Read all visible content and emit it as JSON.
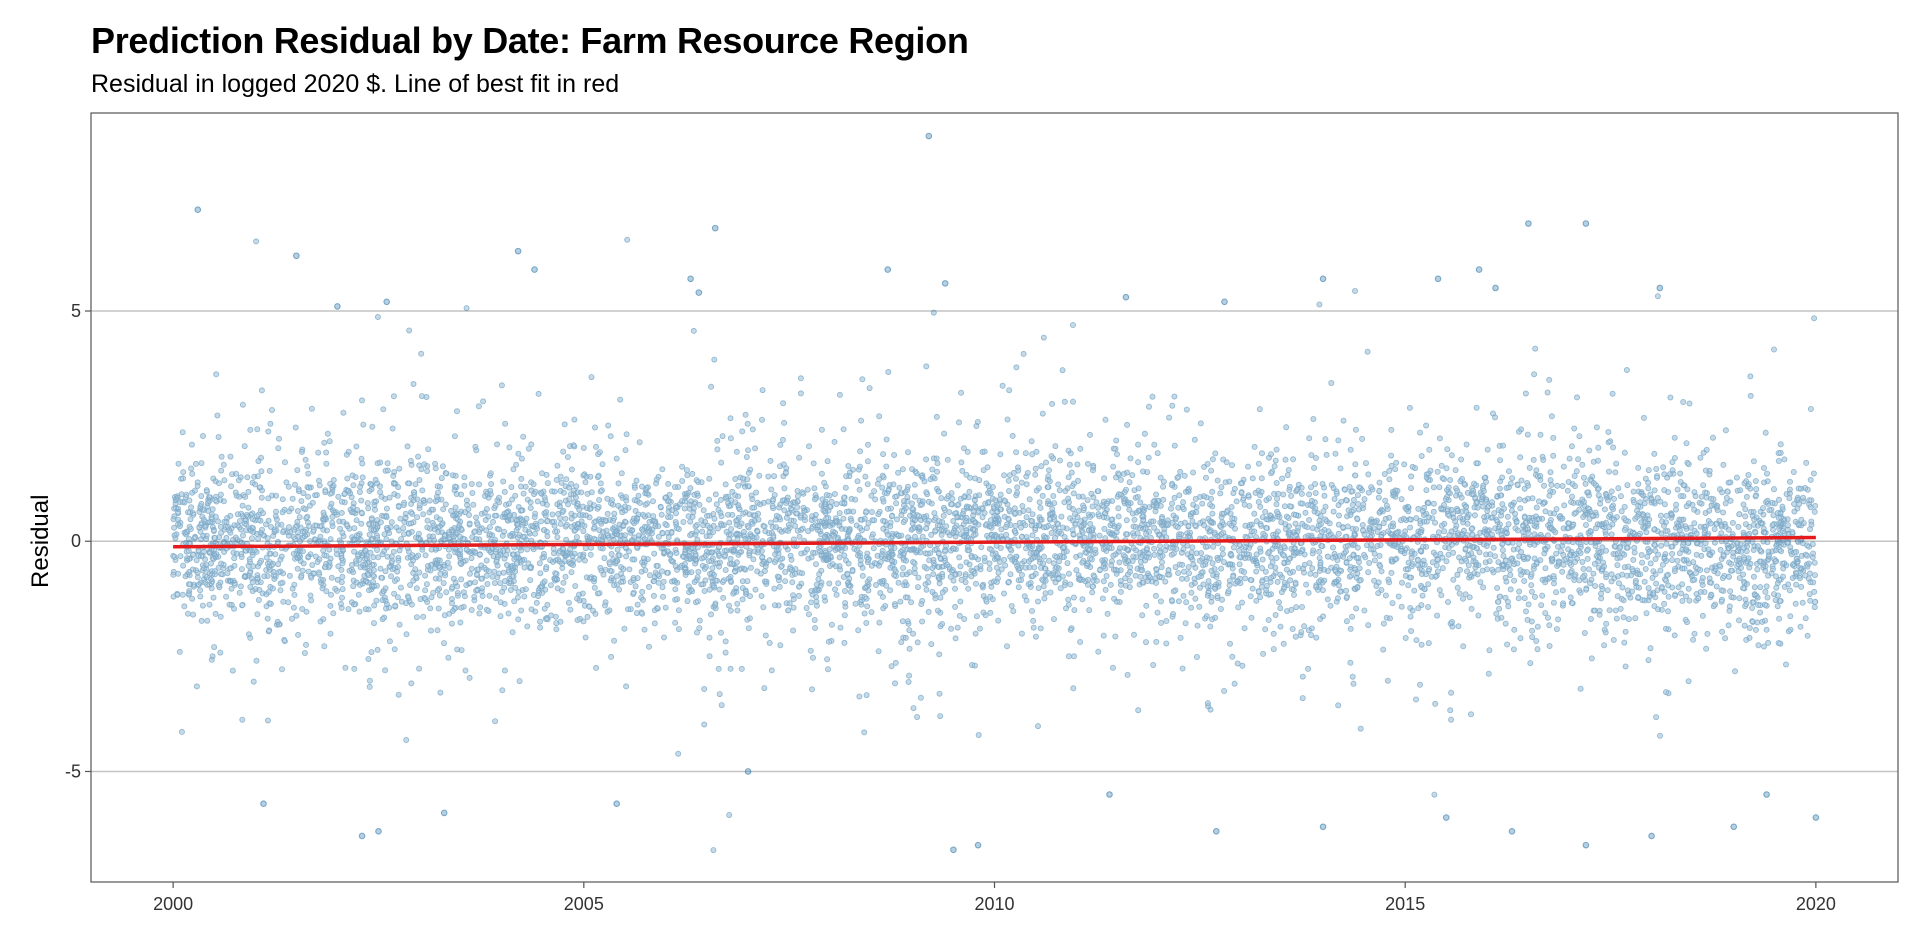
{
  "chart_data": {
    "type": "scatter",
    "title": "Prediction Residual by Date: Farm Resource Region",
    "subtitle": "Residual in logged 2020 $. Line of best fit in red",
    "xlabel": "",
    "ylabel": "Residual",
    "xlim": [
      1999.0,
      2021.0
    ],
    "ylim": [
      -7.4,
      9.3
    ],
    "x_ticks": [
      2000,
      2005,
      2010,
      2015,
      2020
    ],
    "x_tick_labels": [
      "2000",
      "2005",
      "2010",
      "2015",
      "2020"
    ],
    "y_ticks": [
      -5,
      0,
      5
    ],
    "y_tick_labels": [
      "-5",
      "0",
      "5"
    ],
    "grid": "horizontal",
    "point_color": "#2e77a8",
    "fit_color": "#e41a1c",
    "fit_line": {
      "x": [
        2000,
        2020
      ],
      "y": [
        -0.12,
        0.08
      ]
    },
    "dense_band": {
      "x_range": [
        2000,
        2020
      ],
      "core_sd": 0.8,
      "n_points": 42000
    },
    "outliers": [
      {
        "x": 2000.3,
        "y": 7.2
      },
      {
        "x": 2001.5,
        "y": 6.2
      },
      {
        "x": 2002.6,
        "y": 5.2
      },
      {
        "x": 2002.0,
        "y": 5.1
      },
      {
        "x": 2004.2,
        "y": 6.3
      },
      {
        "x": 2004.4,
        "y": 5.9
      },
      {
        "x": 2006.6,
        "y": 6.8
      },
      {
        "x": 2006.4,
        "y": 5.4
      },
      {
        "x": 2008.7,
        "y": 5.9
      },
      {
        "x": 2009.2,
        "y": 8.8
      },
      {
        "x": 2009.4,
        "y": 5.6
      },
      {
        "x": 2006.3,
        "y": 5.7
      },
      {
        "x": 2011.6,
        "y": 5.3
      },
      {
        "x": 2012.8,
        "y": 5.2
      },
      {
        "x": 2014.0,
        "y": 5.7
      },
      {
        "x": 2015.4,
        "y": 5.7
      },
      {
        "x": 2015.9,
        "y": 5.9
      },
      {
        "x": 2016.5,
        "y": 6.9
      },
      {
        "x": 2017.2,
        "y": 6.9
      },
      {
        "x": 2018.1,
        "y": 5.5
      },
      {
        "x": 2016.1,
        "y": 5.5
      },
      {
        "x": 2001.1,
        "y": -5.7
      },
      {
        "x": 2002.3,
        "y": -6.4
      },
      {
        "x": 2002.5,
        "y": -6.3
      },
      {
        "x": 2003.3,
        "y": -5.9
      },
      {
        "x": 2005.4,
        "y": -5.7
      },
      {
        "x": 2007.0,
        "y": -5.0
      },
      {
        "x": 2009.5,
        "y": -6.7
      },
      {
        "x": 2009.8,
        "y": -6.6
      },
      {
        "x": 2011.4,
        "y": -5.5
      },
      {
        "x": 2012.7,
        "y": -6.3
      },
      {
        "x": 2014.0,
        "y": -6.2
      },
      {
        "x": 2015.5,
        "y": -6.0
      },
      {
        "x": 2016.3,
        "y": -6.3
      },
      {
        "x": 2017.2,
        "y": -6.6
      },
      {
        "x": 2018.0,
        "y": -6.4
      },
      {
        "x": 2019.0,
        "y": -6.2
      },
      {
        "x": 2020.0,
        "y": -6.0
      },
      {
        "x": 2019.4,
        "y": -5.5
      }
    ]
  }
}
